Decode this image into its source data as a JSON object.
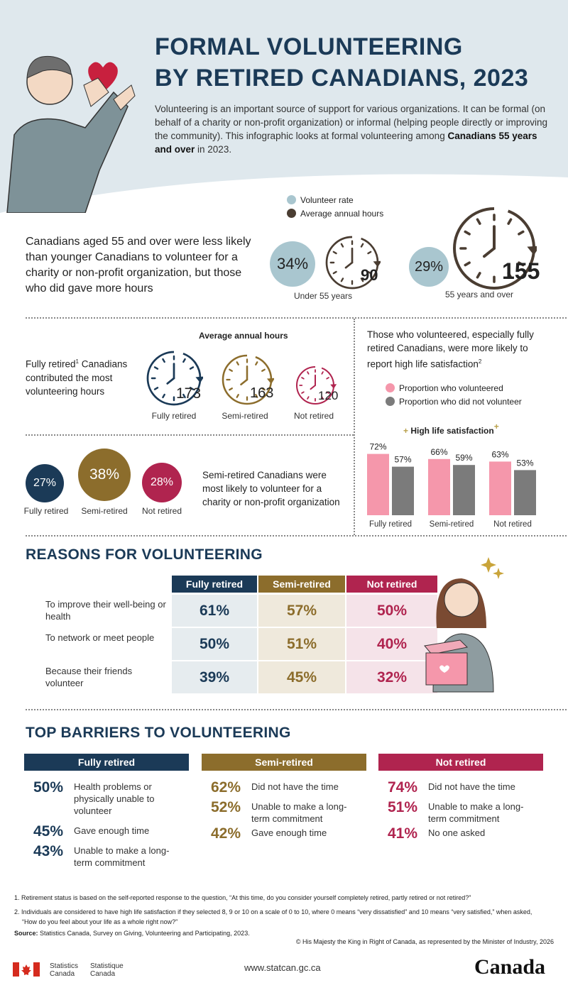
{
  "title": [
    "FORMAL VOLUNTEERING",
    "BY RETIRED CANADIANS, 2023"
  ],
  "intro": {
    "text": "Volunteering is an important source of support for various organizations. It can be formal (on behalf of a charity or non-profit organization) or informal (helping people directly or improving the community). This infographic looks at formal volunteering among ",
    "bold": "Canadians 55 years and over",
    "end": " in 2023."
  },
  "colors": {
    "navy": "#1b3a57",
    "gold": "#8c6d2c",
    "crimson": "#b0244f",
    "lightblue": "#a9c6cf",
    "pink": "#f597ab",
    "gray": "#7b7b7b"
  },
  "age": {
    "legend": [
      "Volunteer rate",
      "Average annual hours"
    ],
    "statement": "Canadians aged 55 and over were less likely than younger Canadians to volunteer for a charity or non-profit organization, but those who did gave more hours",
    "groups": [
      {
        "label": "Under 55 years",
        "rate": "34%",
        "hours": "90"
      },
      {
        "label": "55 years and over",
        "rate": "29%",
        "hours": "155"
      }
    ]
  },
  "hours": {
    "title": "Average annual hours",
    "statement": "Fully retired",
    "sup": "1",
    "statement_end": " Canadians contributed the most volunteering hours",
    "groups": [
      {
        "label": "Fully retired",
        "hours": "173"
      },
      {
        "label": "Semi-retired",
        "hours": "163"
      },
      {
        "label": "Not retired",
        "hours": "120"
      }
    ]
  },
  "rates": {
    "statement": "Semi-retired Canadians were most likely to volunteer for a charity or non-profit organization",
    "groups": [
      {
        "label": "Fully retired",
        "rate": "27%"
      },
      {
        "label": "Semi-retired",
        "rate": "38%"
      },
      {
        "label": "Not retired",
        "rate": "28%"
      }
    ]
  },
  "satisfaction": {
    "statement": "Those who volunteered, especially fully retired Canadians, were more likely to report high life satisfaction",
    "sup": "2"
  },
  "chart_data": {
    "type": "bar",
    "title": "High life satisfaction",
    "categories": [
      "Fully retired",
      "Semi-retired",
      "Not retired"
    ],
    "series": [
      {
        "name": "Proportion who volunteered",
        "values": [
          72,
          66,
          63
        ],
        "labels": [
          "72%",
          "66%",
          "63%"
        ]
      },
      {
        "name": "Proportion who did not volunteer",
        "values": [
          57,
          59,
          53
        ],
        "labels": [
          "57%",
          "59%",
          "53%"
        ]
      }
    ],
    "ylim": [
      0,
      100
    ],
    "grid": false,
    "legend": "top"
  },
  "reasons": {
    "title": "REASONS FOR VOLUNTEERING",
    "headers": [
      "Fully retired",
      "Semi-retired",
      "Not retired"
    ],
    "rows": [
      {
        "label": "To improve their well-being or health",
        "values": [
          "61%",
          "57%",
          "50%"
        ]
      },
      {
        "label": "To network or meet people",
        "values": [
          "50%",
          "51%",
          "40%"
        ]
      },
      {
        "label": "Because their friends volunteer",
        "values": [
          "39%",
          "45%",
          "32%"
        ]
      }
    ]
  },
  "barriers": {
    "title": "TOP BARRIERS TO VOLUNTEERING",
    "groups": [
      {
        "header": "Fully retired",
        "items": [
          {
            "pct": "50%",
            "text": "Health problems or physically unable to volunteer"
          },
          {
            "pct": "45%",
            "text": "Gave enough time"
          },
          {
            "pct": "43%",
            "text": "Unable to make a long-term commitment"
          }
        ]
      },
      {
        "header": "Semi-retired",
        "items": [
          {
            "pct": "62%",
            "text": "Did not have the time"
          },
          {
            "pct": "52%",
            "text": "Unable to make a long-term commitment"
          },
          {
            "pct": "42%",
            "text": "Gave enough time"
          }
        ]
      },
      {
        "header": "Not retired",
        "items": [
          {
            "pct": "74%",
            "text": "Did not have the time"
          },
          {
            "pct": "51%",
            "text": "Unable to make a long-term commitment"
          },
          {
            "pct": "41%",
            "text": "No one asked"
          }
        ]
      }
    ]
  },
  "footnotes": [
    "1.  Retirement status is based on the self-reported response to the question, “At this time, do you consider yourself completely retired, partly retired or not retired?”",
    "2.  Individuals are considered to have high life satisfaction if they selected 8, 9 or 10 on a scale of 0 to 10, where 0 means “very dissatisfied” and 10 means “very satisfied,” when asked, “How do you feel about your life as a whole right now?”"
  ],
  "source": {
    "label": "Source:",
    "text": " Statistics Canada, Survey on Giving, Volunteering and Participating, 2023."
  },
  "copyright": "© His Majesty the King in Right of Canada, as represented by the Minister of Industry, 2026",
  "footer": {
    "stat_en": [
      "Statistics",
      "Canada"
    ],
    "stat_fr": [
      "Statistique",
      "Canada"
    ],
    "url": "www.statcan.gc.ca",
    "wordmark": "Canada"
  }
}
